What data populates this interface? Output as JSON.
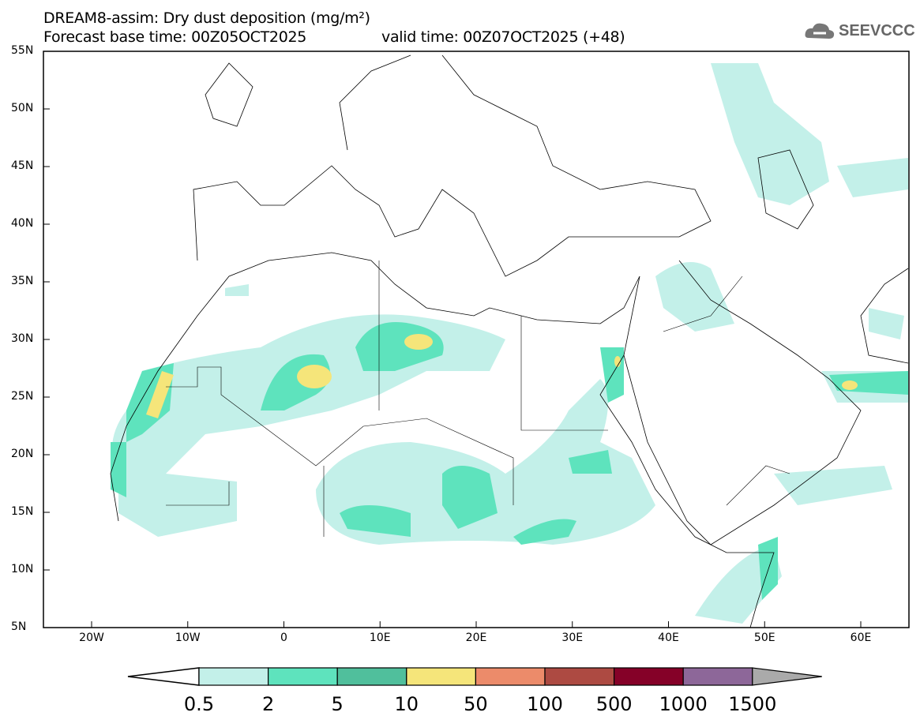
{
  "title": "DREAM8-assim: Dry dust deposition (mg/m²)",
  "subtitle_base": "Forecast base time: 00Z05OCT2025",
  "subtitle_valid": "valid time: 00Z07OCT2025 (+48)",
  "logo": "SEEVCCC",
  "lat_labels": [
    "55N",
    "50N",
    "45N",
    "40N",
    "35N",
    "30N",
    "25N",
    "20N",
    "15N",
    "10N",
    "5N"
  ],
  "lon_labels": [
    "20W",
    "10W",
    "0",
    "10E",
    "20E",
    "30E",
    "40E",
    "50E",
    "60E"
  ],
  "colorbar": {
    "labels": [
      "0.5",
      "2",
      "5",
      "10",
      "50",
      "100",
      "500",
      "1000",
      "1500"
    ],
    "colors": [
      "#c3f0e9",
      "#5ee3bd",
      "#50bf9c",
      "#f5e57a",
      "#ec8b6a",
      "#ad4a42",
      "#850128",
      "#8d6799"
    ],
    "under_color": "#ffffff",
    "over_color": "#aaaaaa"
  }
}
